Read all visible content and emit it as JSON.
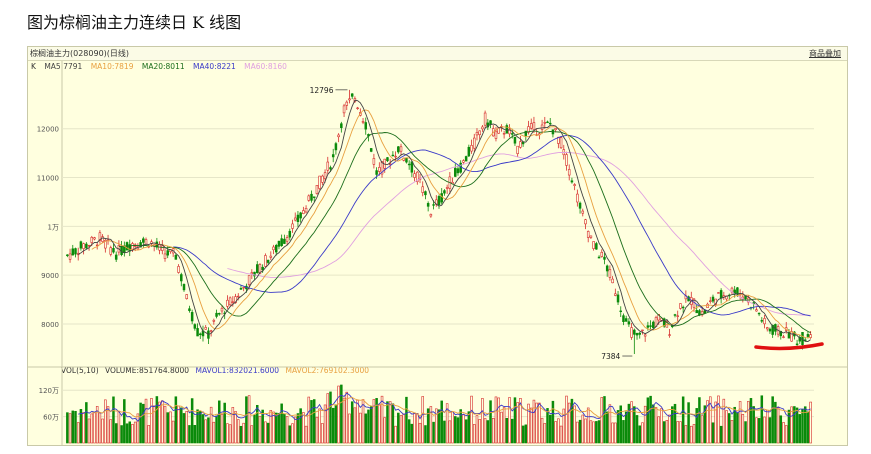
{
  "page": {
    "title": "图为棕榈油主力连续日 K 线图"
  },
  "window": {
    "symbol_label": "棕榈油主力(028090)(日线)",
    "overlay_button": "商品叠加"
  },
  "legend": {
    "k": "K",
    "ma5": "MA5:7791",
    "ma10": "MA10:7819",
    "ma20": "MA20:8011",
    "ma40": "MA40:8221",
    "ma60": "MA60:8160"
  },
  "volume_legend": {
    "vol": "VOL(5,10)",
    "volume": "VOLUME:851764.8000",
    "mavol1": "MAVOL1:832021.6000",
    "mavol2": "MAVOL2:769102.3000"
  },
  "colors": {
    "up": "#d62b2b",
    "down": "#0a8a0a",
    "ma5": "#444444",
    "ma10": "#e8a040",
    "ma20": "#1c6e1c",
    "ma40": "#3a3ac8",
    "ma60": "#e0a0e0",
    "mark": "#e01010"
  },
  "chart_data": {
    "type": "candlestick",
    "price_axis": {
      "ticks": [
        8000,
        9000,
        10000,
        11000,
        12000
      ],
      "tick_labels": [
        "8000",
        "9000",
        "1万",
        "11000",
        "12000"
      ],
      "range": [
        7200,
        13100
      ]
    },
    "volume_axis": {
      "ticks": [
        600000,
        1200000
      ],
      "tick_labels": [
        "60万",
        "120万"
      ],
      "range": [
        0,
        1500000
      ]
    },
    "annotations": [
      {
        "label": "12796",
        "value": 12796,
        "kind": "high"
      },
      {
        "label": "7384",
        "value": 7384,
        "kind": "low"
      }
    ],
    "anchors": [
      [
        0,
        9400
      ],
      [
        6,
        9600
      ],
      [
        12,
        9750
      ],
      [
        18,
        9450
      ],
      [
        24,
        9650
      ],
      [
        30,
        9700
      ],
      [
        36,
        9450
      ],
      [
        40,
        9400
      ],
      [
        44,
        8500
      ],
      [
        48,
        7850
      ],
      [
        52,
        7800
      ],
      [
        56,
        8200
      ],
      [
        62,
        8550
      ],
      [
        70,
        9100
      ],
      [
        78,
        9600
      ],
      [
        86,
        10200
      ],
      [
        92,
        10800
      ],
      [
        98,
        11400
      ],
      [
        102,
        12400
      ],
      [
        106,
        12650
      ],
      [
        110,
        12100
      ],
      [
        114,
        11100
      ],
      [
        118,
        11300
      ],
      [
        122,
        11600
      ],
      [
        126,
        11300
      ],
      [
        130,
        10900
      ],
      [
        134,
        10300
      ],
      [
        138,
        10600
      ],
      [
        142,
        11000
      ],
      [
        146,
        11300
      ],
      [
        150,
        11700
      ],
      [
        154,
        12200
      ],
      [
        158,
        11900
      ],
      [
        162,
        12000
      ],
      [
        166,
        11600
      ],
      [
        170,
        12000
      ],
      [
        174,
        12000
      ],
      [
        178,
        12100
      ],
      [
        182,
        11700
      ],
      [
        186,
        11000
      ],
      [
        190,
        10200
      ],
      [
        194,
        9600
      ],
      [
        198,
        9300
      ],
      [
        202,
        8700
      ],
      [
        206,
        8000
      ],
      [
        210,
        7700
      ],
      [
        214,
        7900
      ],
      [
        218,
        8100
      ],
      [
        222,
        7900
      ],
      [
        226,
        8400
      ],
      [
        230,
        8500
      ],
      [
        234,
        8200
      ],
      [
        238,
        8500
      ],
      [
        242,
        8600
      ],
      [
        246,
        8700
      ],
      [
        250,
        8550
      ],
      [
        254,
        8300
      ],
      [
        258,
        7900
      ],
      [
        262,
        7850
      ],
      [
        266,
        7800
      ],
      [
        270,
        7650
      ],
      [
        274,
        7850
      ]
    ],
    "candle_count": 275
  }
}
